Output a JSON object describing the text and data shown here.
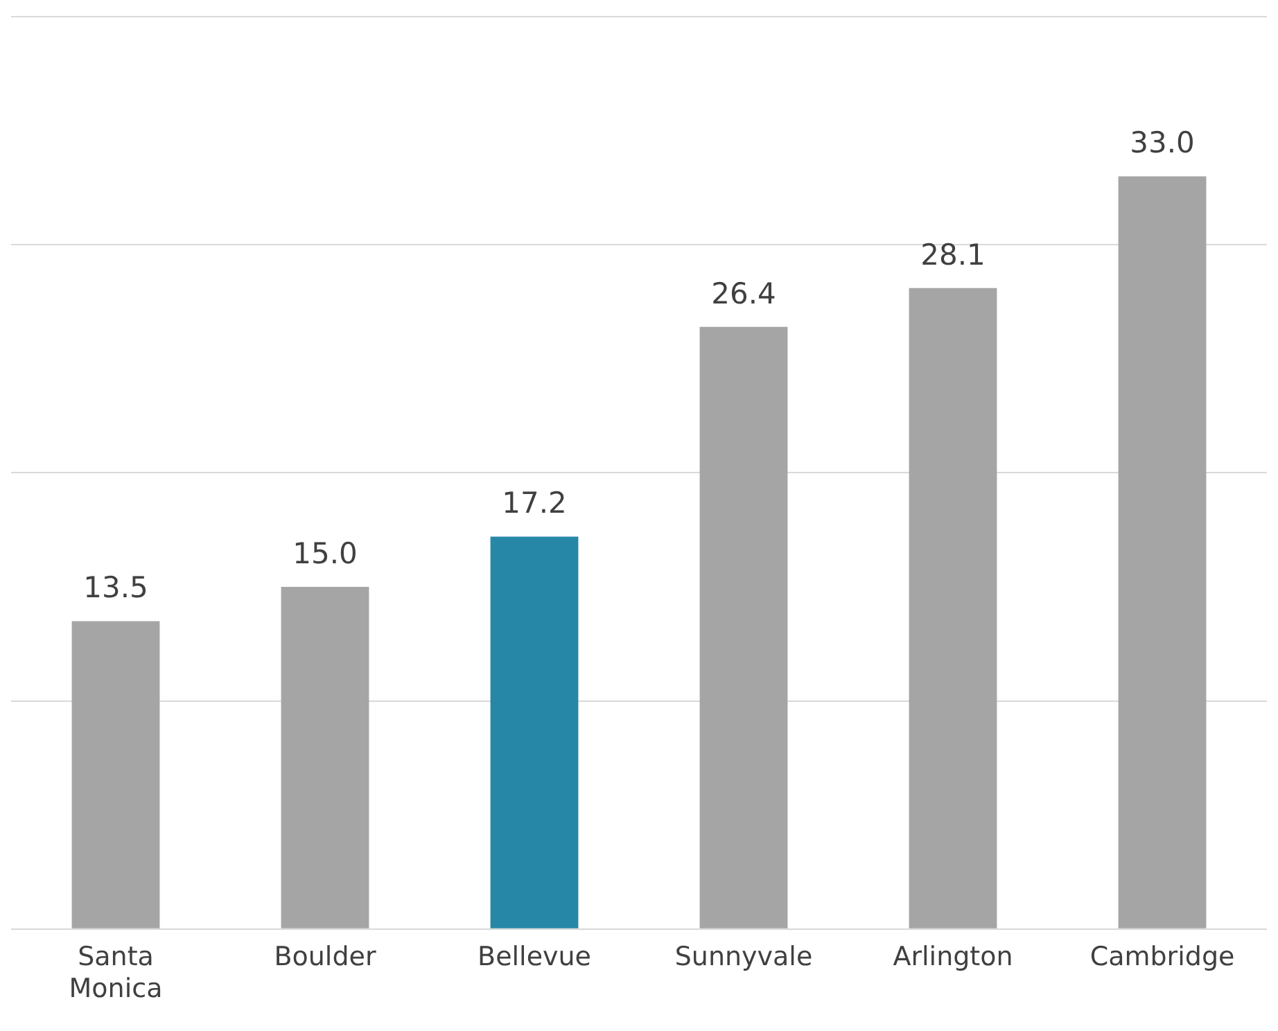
{
  "chart_data": {
    "type": "bar",
    "categories": [
      "Santa Monica",
      "Boulder",
      "Bellevue",
      "Sunnyvale",
      "Arlington",
      "Cambridge"
    ],
    "values": [
      13.5,
      15.0,
      17.2,
      26.4,
      28.1,
      33.0
    ],
    "value_labels": [
      "13.5",
      "15.0",
      "17.2",
      "26.4",
      "28.1",
      "33.0"
    ],
    "colors": [
      "#a5a5a5",
      "#a5a5a5",
      "#2787a6",
      "#a5a5a5",
      "#a5a5a5",
      "#a5a5a5"
    ],
    "ylim": [
      0,
      40
    ],
    "grid": "y",
    "tick_labels": "x",
    "legend": false
  }
}
